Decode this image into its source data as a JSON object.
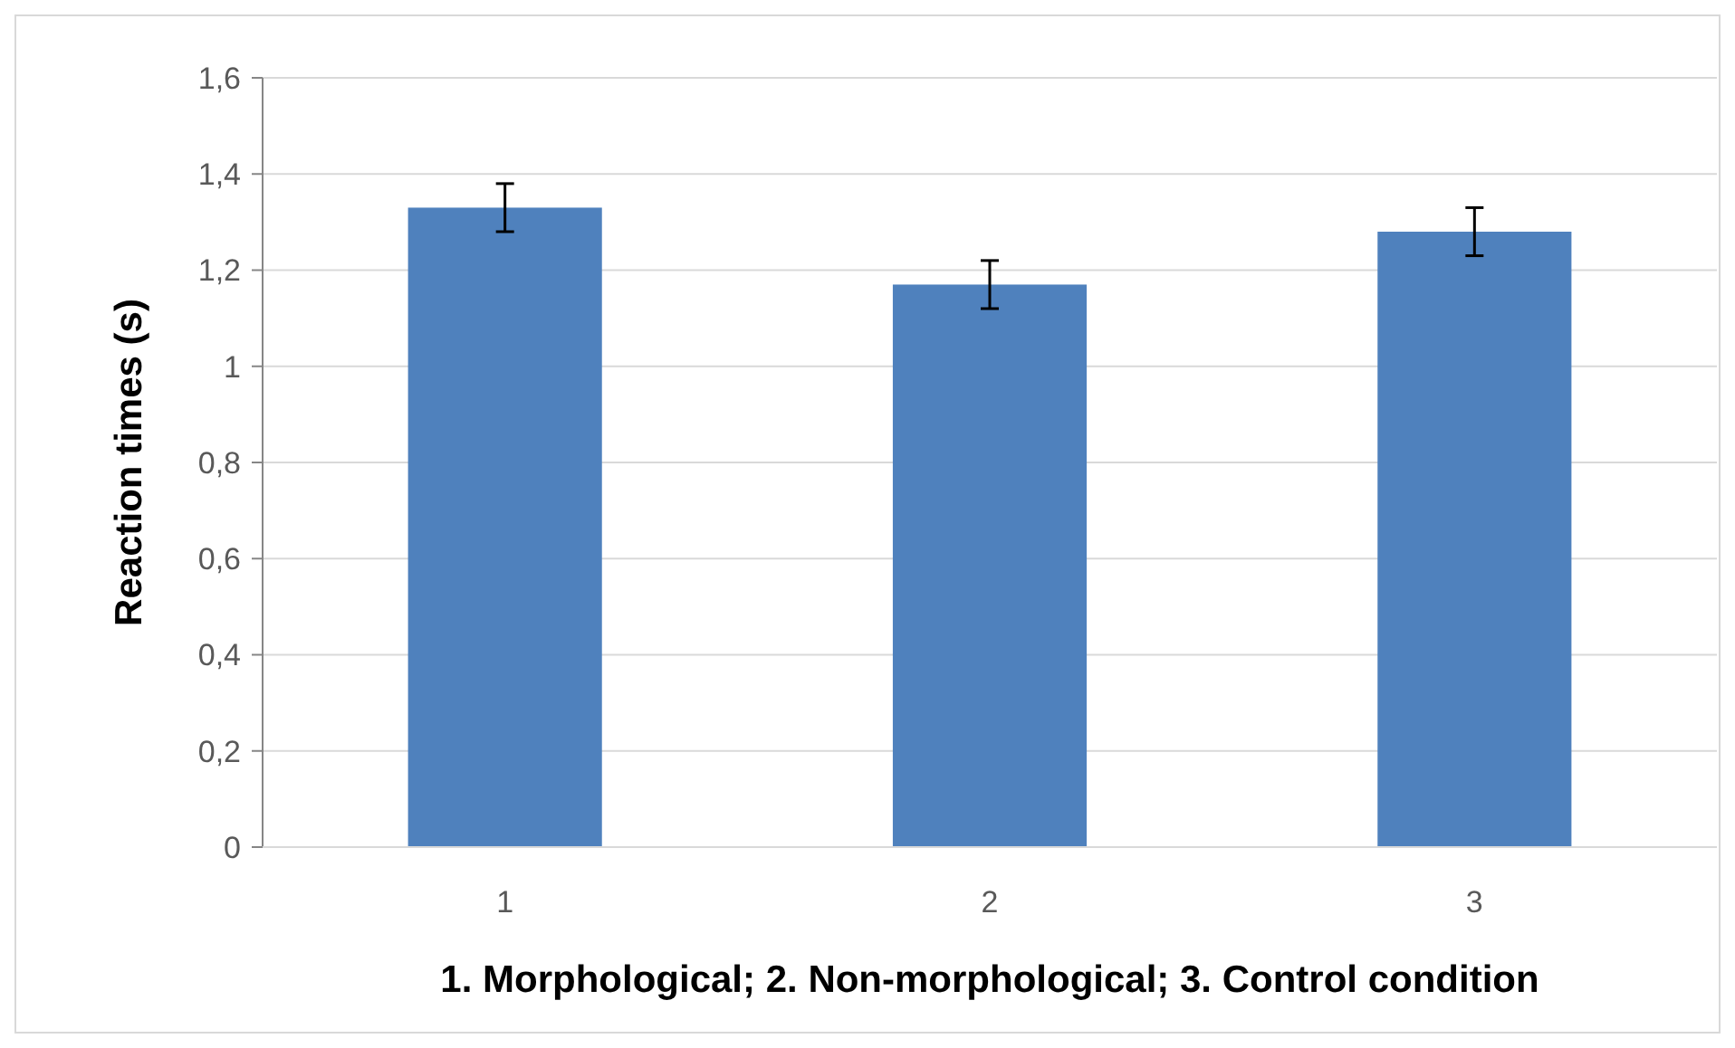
{
  "chart_data": {
    "type": "bar",
    "xlabel": "1. Morphological; 2. Non-morphological; 3. Control condition",
    "ylabel": "Reaction times (s)",
    "categories": [
      "1",
      "2",
      "3"
    ],
    "values": [
      1.33,
      1.17,
      1.28
    ],
    "errors": [
      0.05,
      0.05,
      0.05
    ],
    "color": "#4f81bd",
    "ylim": [
      0,
      1.6
    ],
    "yticks": [
      0,
      {
        "value": 0.2,
        "label": "0,2"
      },
      {
        "value": 0.4,
        "label": "0,4"
      },
      {
        "value": 0.6,
        "label": "0,6"
      },
      {
        "value": 0.8,
        "label": "0,8"
      },
      1,
      {
        "value": 1.2,
        "label": "1,2"
      },
      {
        "value": 1.4,
        "label": "1,4"
      },
      {
        "value": 1.6,
        "label": "1,6"
      }
    ],
    "grid": "y"
  }
}
